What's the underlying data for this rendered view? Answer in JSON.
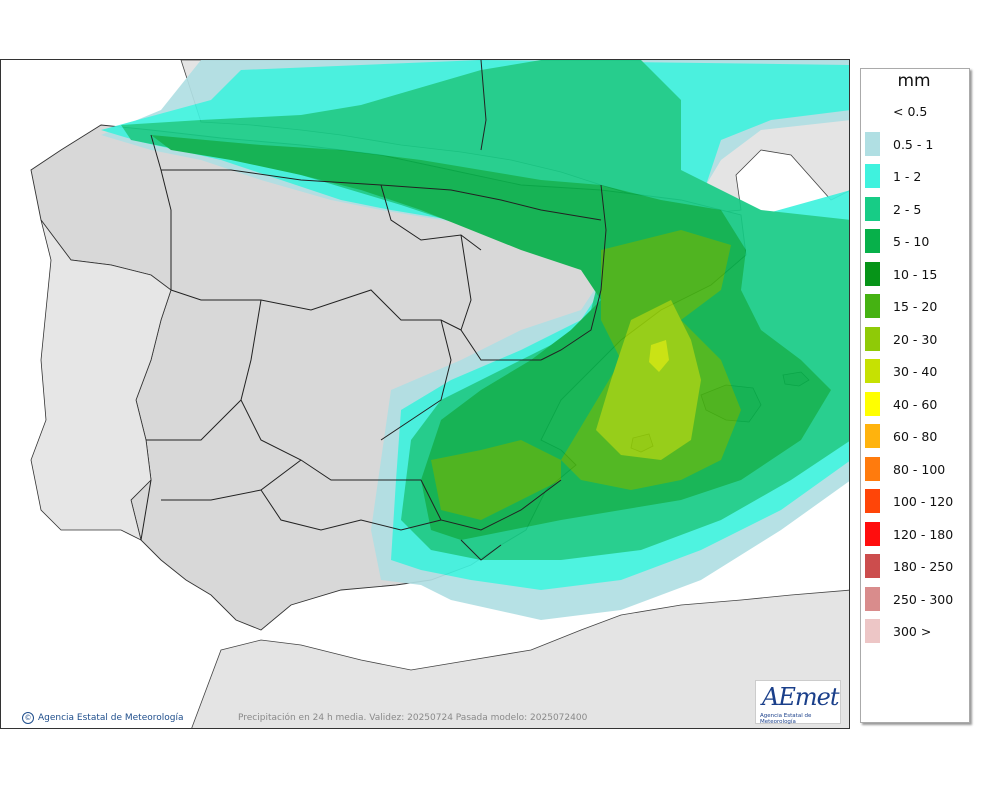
{
  "legend": {
    "unit": "mm",
    "items": [
      {
        "label": "< 0.5",
        "color": "#ffffff"
      },
      {
        "label": "0.5 - 1",
        "color": "#b0dfe3"
      },
      {
        "label": "1 - 2",
        "color": "#3ff2de"
      },
      {
        "label": "2 - 5",
        "color": "#17cc86"
      },
      {
        "label": "5 - 10",
        "color": "#07b04a"
      },
      {
        "label": "10 - 15",
        "color": "#069418"
      },
      {
        "label": "15 - 20",
        "color": "#45b212"
      },
      {
        "label": "20 - 30",
        "color": "#8fca07"
      },
      {
        "label": "30 - 40",
        "color": "#c6e102"
      },
      {
        "label": "40 - 60",
        "color": "#ffff00"
      },
      {
        "label": "60 - 80",
        "color": "#ffb30d"
      },
      {
        "label": "80 - 100",
        "color": "#ff7b0d"
      },
      {
        "label": "100 - 120",
        "color": "#ff4508"
      },
      {
        "label": "120 - 180",
        "color": "#ff0d0d"
      },
      {
        "label": "180 - 250",
        "color": "#cc4d4d"
      },
      {
        "label": "250 - 300",
        "color": "#d98c8c"
      },
      {
        "label": "300 >",
        "color": "#edc6c6"
      }
    ]
  },
  "footer": {
    "credit": "Agencia Estatal de Meteorología",
    "credit_symbol": "©",
    "caption": "Precipitación en 24 h media. Validez: 20250724 Pasada modelo: 2025072400"
  },
  "logo": {
    "wordmark": "AEmet",
    "subtitle": "Agencia Estatal de Meteorología"
  },
  "colors": {
    "sea": "#ffffff",
    "land": "#d8d8d8",
    "border": "#222222"
  }
}
